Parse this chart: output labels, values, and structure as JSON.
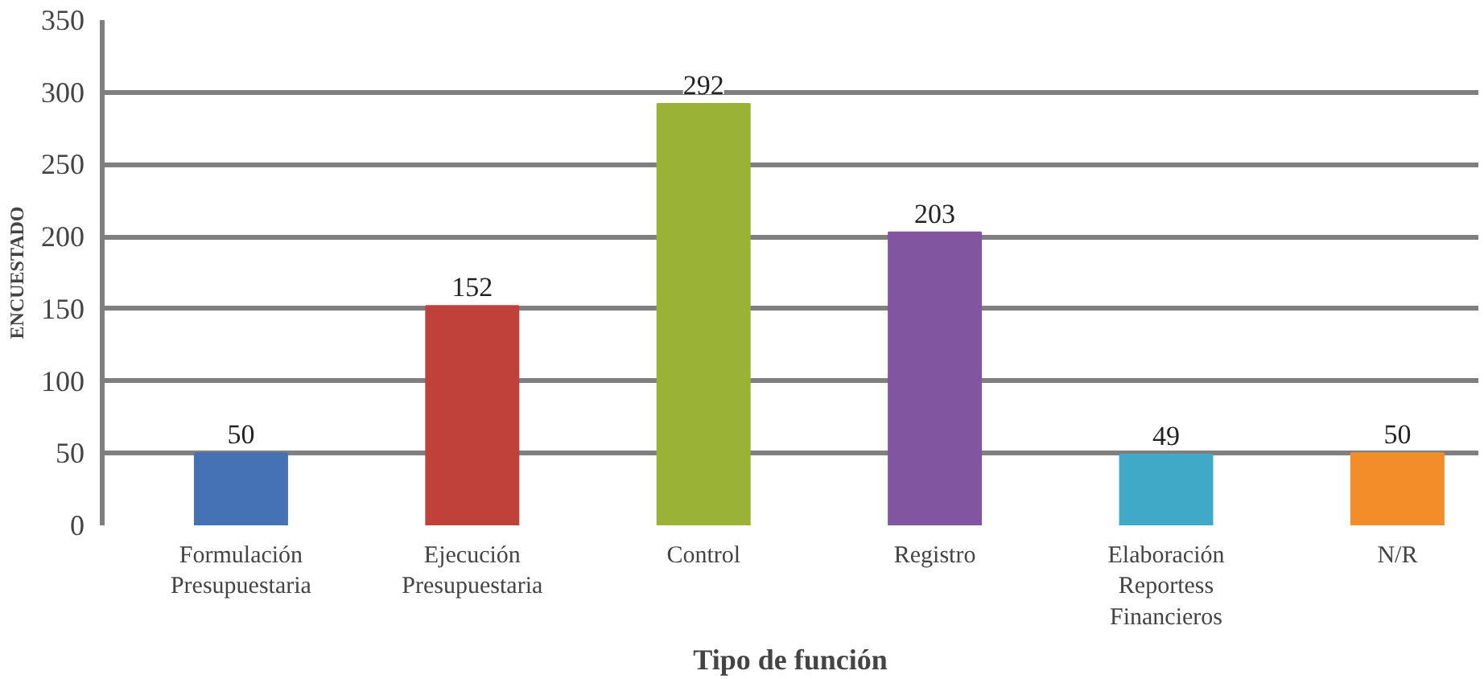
{
  "chart_data": {
    "type": "bar",
    "xlabel": "Tipo de función",
    "ylabel": "ENCUESTADO",
    "categories": [
      "Formulación Presupuestaria",
      "Ejecución Presupuestaria",
      "Control",
      "Registro",
      "Elaboración Reportess Financieros",
      "N/R"
    ],
    "values": [
      50,
      152,
      292,
      203,
      49,
      50
    ],
    "colors": [
      "#4472b4",
      "#c0413a",
      "#9ab334",
      "#8255a0",
      "#40a9c8",
      "#f28e2a"
    ],
    "ylim": [
      0,
      350
    ],
    "yticks": [
      0,
      50,
      100,
      150,
      200,
      250,
      300,
      350
    ],
    "grid": "y",
    "data_labels": true
  }
}
